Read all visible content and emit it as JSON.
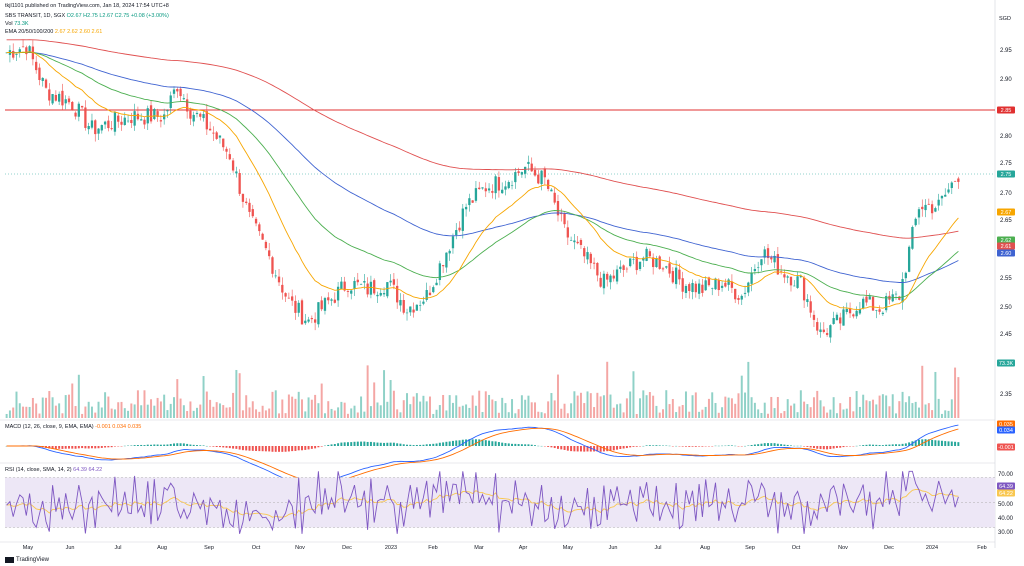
{
  "header": {
    "publisher": "tkjl1101 published on TradingView.com, Jan 18, 2024 17:54 UTC+8",
    "symbol_line": "SBS TRANSIT, 1D, SGX",
    "ohlc": "O2.67 H2.75 L2.67 C2.75 +0.08 (+3.00%)",
    "vol_label": "Vol",
    "vol_value": "73.3K",
    "ema_label": "EMA 20/50/100/200",
    "ema_values": "2.67  2.62  2.60  2.61",
    "macd_label": "MACD (12, 26, close, 9, EMA, EMA)",
    "macd_values": "-0.001  0.034  0.035",
    "rsi_label": "RSI (14, close, SMA, 14, 2)",
    "rsi_values": "64.39  64.22"
  },
  "currency": "SGD",
  "footer_logo": "TradingView",
  "colors": {
    "up": "#26a69a",
    "down": "#ef5350",
    "ema20": "#f7a600",
    "ema50": "#4caf50",
    "ema100": "#3f63d1",
    "ema200": "#e05050",
    "resistance": "#e03030",
    "macd_line": "#2962ff",
    "signal_line": "#ff6d00",
    "rsi_line": "#7e57c2",
    "rsi_bg": "#ede7f6"
  },
  "chart_data": {
    "type": "candlestick",
    "title": "SBS TRANSIT, 1D, SGX",
    "x_ticks": [
      "May",
      "Jun",
      "Jul",
      "Aug",
      "Sep",
      "Oct",
      "Nov",
      "Dec",
      "2023",
      "Feb",
      "Mar",
      "Apr",
      "May",
      "Jun",
      "Jul",
      "Aug",
      "Sep",
      "Oct",
      "Nov",
      "Dec",
      "2024",
      "Feb"
    ],
    "price_ticks": [
      "2.95",
      "2.90",
      "2.80",
      "2.75",
      "2.70",
      "2.65",
      "2.55",
      "2.50",
      "2.45"
    ],
    "price_ylim": [
      2.44,
      3.0
    ],
    "volume_ticks": [
      "2.35"
    ],
    "macd_ticks": [],
    "rsi_ticks": [
      "70.00",
      "50.00",
      "40.00",
      "30.00"
    ],
    "rsi_ylim": [
      20,
      80
    ],
    "rsi_bands": [
      30,
      70
    ],
    "resistance_level": 2.85,
    "last_labels": {
      "resistance": "2.85",
      "close": "2.75",
      "ema20": "2.67",
      "ema50": "2.62",
      "ema200": "2.61",
      "ema100": "2.60",
      "volume": "73.3K",
      "macd_signal": "0.035",
      "macd_line": "0.034",
      "macd_hist": "-0.001",
      "rsi": "64.39",
      "rsi_ma": "64.22"
    },
    "anchors": [
      [
        0,
        2.94
      ],
      [
        6,
        2.95
      ],
      [
        12,
        2.88
      ],
      [
        20,
        2.86
      ],
      [
        26,
        2.82
      ],
      [
        38,
        2.84
      ],
      [
        48,
        2.84
      ],
      [
        52,
        2.89
      ],
      [
        56,
        2.85
      ],
      [
        62,
        2.82
      ],
      [
        68,
        2.78
      ],
      [
        74,
        2.68
      ],
      [
        80,
        2.62
      ],
      [
        86,
        2.55
      ],
      [
        92,
        2.52
      ],
      [
        98,
        2.55
      ],
      [
        104,
        2.58
      ],
      [
        110,
        2.57
      ],
      [
        116,
        2.58
      ],
      [
        122,
        2.54
      ],
      [
        128,
        2.56
      ],
      [
        134,
        2.63
      ],
      [
        140,
        2.7
      ],
      [
        146,
        2.73
      ],
      [
        152,
        2.74
      ],
      [
        158,
        2.76
      ],
      [
        164,
        2.74
      ],
      [
        170,
        2.66
      ],
      [
        176,
        2.62
      ],
      [
        182,
        2.58
      ],
      [
        188,
        2.6
      ],
      [
        194,
        2.62
      ],
      [
        200,
        2.61
      ],
      [
        206,
        2.58
      ],
      [
        212,
        2.57
      ],
      [
        218,
        2.58
      ],
      [
        224,
        2.56
      ],
      [
        230,
        2.63
      ],
      [
        236,
        2.6
      ],
      [
        242,
        2.58
      ],
      [
        248,
        2.5
      ],
      [
        254,
        2.52
      ],
      [
        260,
        2.55
      ],
      [
        266,
        2.54
      ],
      [
        272,
        2.56
      ],
      [
        278,
        2.7
      ],
      [
        284,
        2.7
      ],
      [
        290,
        2.75
      ]
    ]
  }
}
